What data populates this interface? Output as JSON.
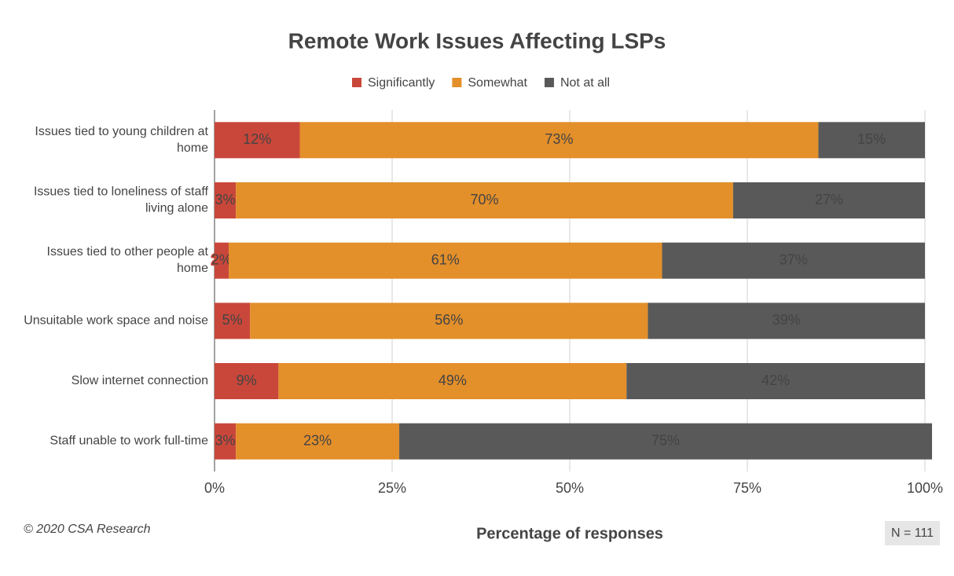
{
  "chart_data": {
    "type": "stacked_bar_horizontal",
    "title": "Remote Work Issues Affecting LSPs",
    "categories": [
      "Issues tied to young children at home",
      "Issues tied to loneliness of staff living alone",
      "Issues tied to other people at home",
      "Unsuitable work space and noise",
      "Slow internet connection",
      "Staff unable to work full-time"
    ],
    "series": [
      {
        "name": "Significantly",
        "color": "#c9473a",
        "values": [
          12,
          3,
          2,
          5,
          9,
          3
        ],
        "value_labels": [
          "12%",
          "3%",
          "2%",
          "5%",
          "9%",
          "3%"
        ]
      },
      {
        "name": "Somewhat",
        "color": "#e38f2a",
        "values": [
          73,
          70,
          61,
          56,
          49,
          23
        ],
        "value_labels": [
          "73%",
          "70%",
          "61%",
          "56%",
          "49%",
          "23%"
        ]
      },
      {
        "name": "Not at all",
        "color": "#595959",
        "values": [
          15,
          27,
          37,
          39,
          42,
          75
        ],
        "value_labels": [
          "15%",
          "27%",
          "37%",
          "39%",
          "42%",
          "75%"
        ]
      }
    ],
    "xlabel": "Percentage of responses",
    "xlim": [
      0,
      100
    ],
    "xticks": [
      {
        "value": 0,
        "label": "0%"
      },
      {
        "value": 25,
        "label": "25%"
      },
      {
        "value": 50,
        "label": "50%"
      },
      {
        "value": 75,
        "label": "75%"
      },
      {
        "value": 100,
        "label": "100%"
      }
    ],
    "grid": true,
    "legend": "top",
    "source": "© 2020 CSA Research",
    "note": "N = 111"
  }
}
